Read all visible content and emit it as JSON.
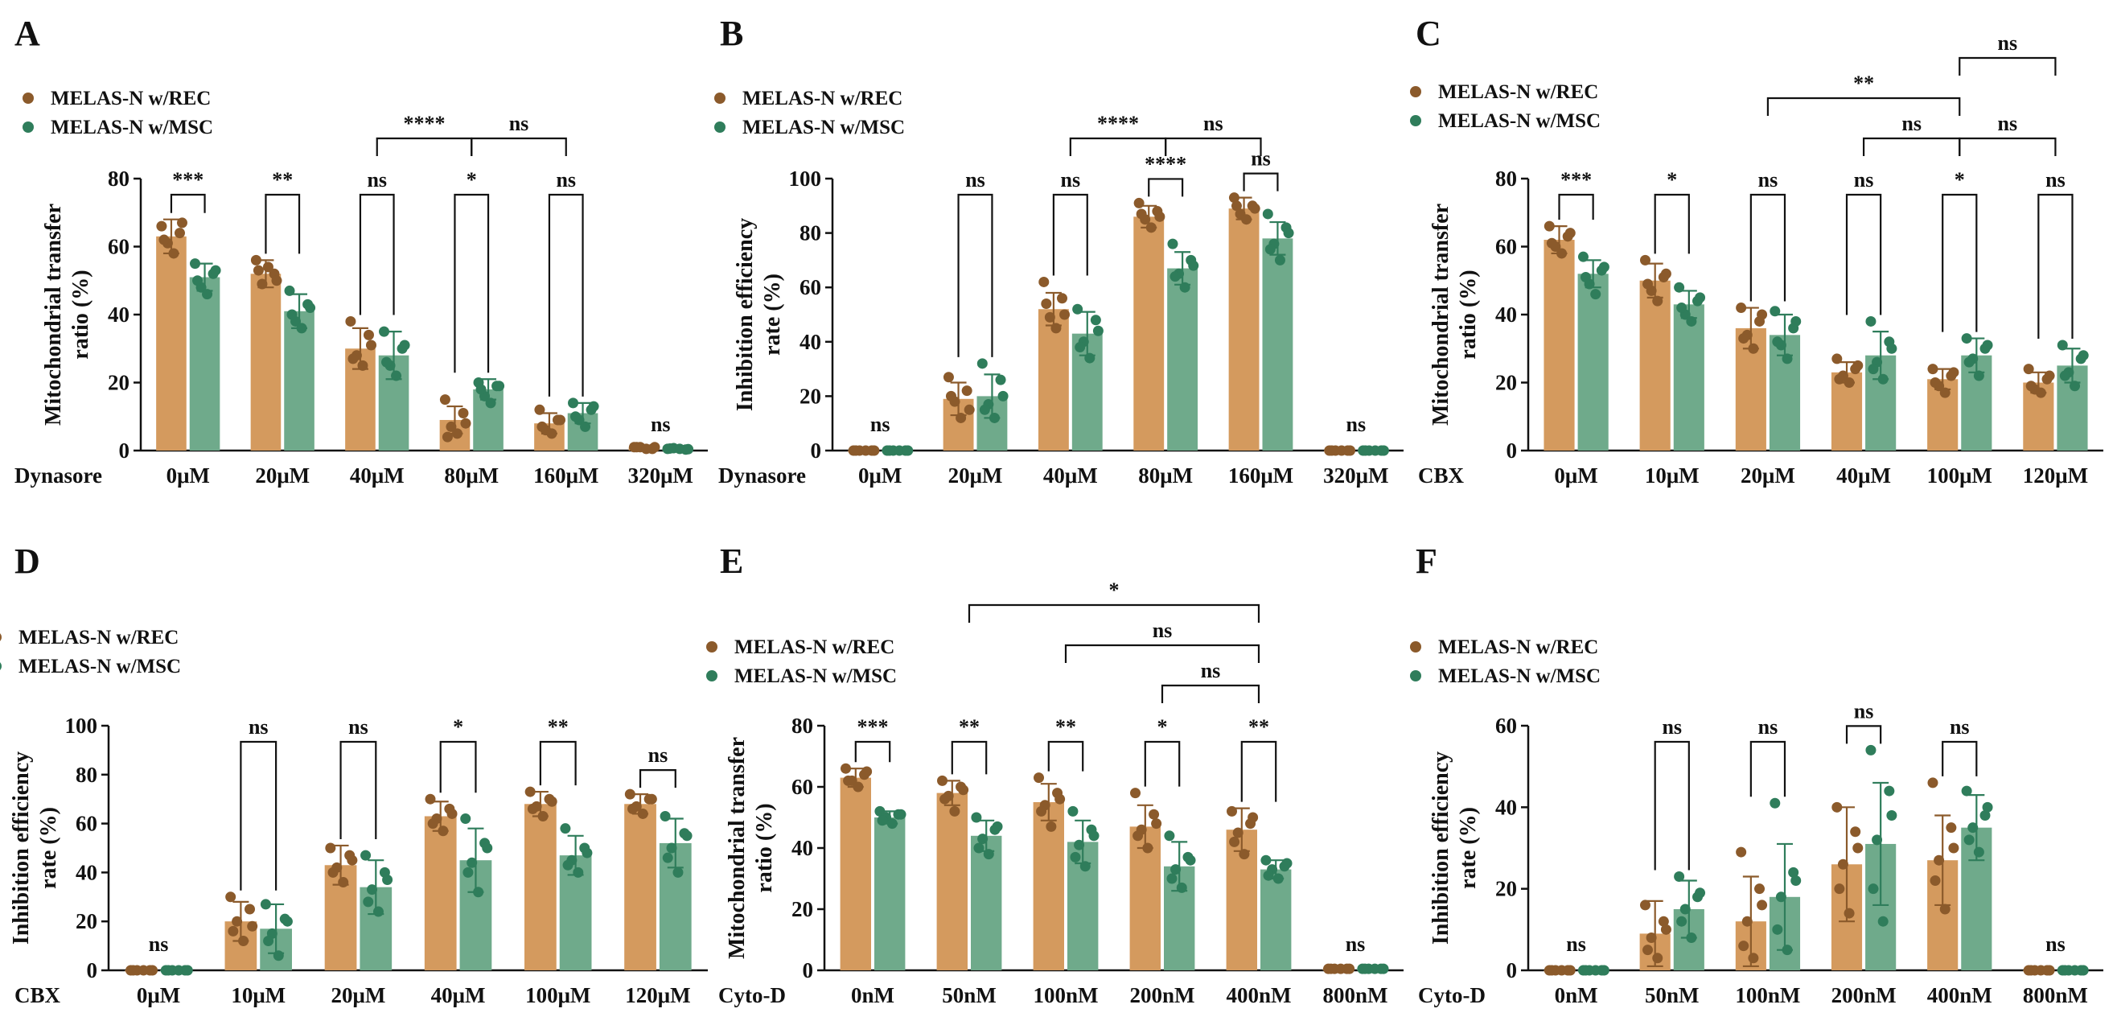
{
  "colors": {
    "rec": "#D49A5E",
    "msc": "#6FAA8B",
    "rec_dot": "#8B5A2B",
    "msc_dot": "#2F7D5B",
    "axis": "#111111"
  },
  "legend": {
    "rec": "MELAS-N w/REC",
    "msc": "MELAS-N w/MSC"
  },
  "chart_data": [
    {
      "panel": "A",
      "type": "bar",
      "ylabel": "Mitochondrial transfer ratio (%)",
      "ylabel_lines": [
        "Mitochondrial transfer",
        "ratio (%)"
      ],
      "ylim": [
        0,
        80
      ],
      "yticks": [
        0,
        20,
        40,
        60,
        80
      ],
      "xlabel": "Dynasore",
      "categories": [
        "0μM",
        "20μM",
        "40μM",
        "80μM",
        "160μM",
        "320μM"
      ],
      "series": [
        {
          "name": "MELAS-N w/REC",
          "values": [
            63,
            52,
            30,
            9,
            8,
            1
          ],
          "errors": [
            5,
            4,
            6,
            4,
            3,
            0.5
          ],
          "points": [
            [
              66,
              64,
              61,
              58,
              67,
              62
            ],
            [
              56,
              52,
              49,
              54,
              50,
              53
            ],
            [
              38,
              34,
              28,
              25,
              31,
              27
            ],
            [
              15,
              11,
              7,
              5,
              8,
              4
            ],
            [
              12,
              9,
              6,
              5,
              9,
              7
            ],
            [
              1,
              0.5,
              1,
              0.5,
              1,
              1
            ]
          ]
        },
        {
          "name": "MELAS-N w/MSC",
          "values": [
            51,
            41,
            28,
            18,
            11,
            0.5
          ],
          "errors": [
            4,
            5,
            7,
            3,
            3,
            0.3
          ],
          "points": [
            [
              55,
              52,
              48,
              46,
              53,
              50
            ],
            [
              47,
              43,
              38,
              36,
              42,
              40
            ],
            [
              35,
              30,
              25,
              22,
              31,
              26
            ],
            [
              20,
              19,
              16,
              14,
              19,
              18
            ],
            [
              14,
              12,
              9,
              7,
              13,
              10
            ],
            [
              0.5,
              0.3,
              0.7,
              0.5,
              0.4,
              0.6
            ]
          ]
        }
      ],
      "pair_sig": [
        "***",
        "**",
        "ns",
        "*",
        "ns",
        "ns"
      ],
      "brackets": [
        {
          "from": 2,
          "to": 3,
          "label": "****",
          "level": 0
        },
        {
          "from": 3,
          "to": 4,
          "label": "ns",
          "level": 0
        }
      ]
    },
    {
      "panel": "B",
      "type": "bar",
      "ylabel": "Inhibition efficiency rate (%)",
      "ylabel_lines": [
        "Inhibition efficiency",
        "rate (%)"
      ],
      "ylim": [
        0,
        100
      ],
      "yticks": [
        0,
        20,
        40,
        60,
        80,
        100
      ],
      "xlabel": "Dynasore",
      "categories": [
        "0μM",
        "20μM",
        "40μM",
        "80μM",
        "160μM",
        "320μM"
      ],
      "series": [
        {
          "name": "MELAS-N w/REC",
          "values": [
            0,
            19,
            52,
            86,
            89,
            0
          ],
          "errors": [
            0.3,
            6,
            6,
            4,
            4,
            0.3
          ],
          "points": [
            [
              0,
              0,
              0,
              0,
              0,
              0
            ],
            [
              27,
              22,
              18,
              12,
              15,
              20
            ],
            [
              62,
              56,
              49,
              45,
              50,
              54
            ],
            [
              91,
              88,
              85,
              82,
              86,
              87
            ],
            [
              93,
              90,
              87,
              85,
              89,
              90
            ],
            [
              0,
              0,
              0,
              0,
              0,
              0
            ]
          ]
        },
        {
          "name": "MELAS-N w/MSC",
          "values": [
            0,
            20,
            43,
            67,
            78,
            0
          ],
          "errors": [
            0.3,
            8,
            8,
            6,
            6,
            0.3
          ],
          "points": [
            [
              0,
              0,
              0,
              0,
              0,
              0
            ],
            [
              32,
              26,
              17,
              12,
              20,
              15
            ],
            [
              52,
              48,
              40,
              34,
              44,
              38
            ],
            [
              76,
              70,
              65,
              60,
              68,
              64
            ],
            [
              87,
              82,
              76,
              70,
              80,
              74
            ],
            [
              0,
              0,
              0,
              0,
              0,
              0
            ]
          ]
        }
      ],
      "pair_sig": [
        "ns",
        "ns",
        "ns",
        "****",
        "ns",
        "ns"
      ],
      "brackets": [
        {
          "from": 2,
          "to": 3,
          "label": "****",
          "level": 0
        },
        {
          "from": 3,
          "to": 4,
          "label": "ns",
          "level": 0
        }
      ]
    },
    {
      "panel": "C",
      "type": "bar",
      "ylabel": "Mitochondrial transfer ratio (%)",
      "ylabel_lines": [
        "Mitochondrial transfer",
        "ratio (%)"
      ],
      "ylim": [
        0,
        80
      ],
      "yticks": [
        0,
        20,
        40,
        60,
        80
      ],
      "xlabel": "CBX",
      "categories": [
        "0μM",
        "10μM",
        "20μM",
        "40μM",
        "100μM",
        "120μM"
      ],
      "series": [
        {
          "name": "MELAS-N w/REC",
          "values": [
            62,
            50,
            36,
            23,
            21,
            20
          ],
          "errors": [
            4,
            5,
            6,
            3,
            3,
            3
          ],
          "points": [
            [
              66,
              63,
              60,
              58,
              64,
              61
            ],
            [
              56,
              51,
              47,
              44,
              52,
              49
            ],
            [
              42,
              38,
              34,
              30,
              40,
              33
            ],
            [
              27,
              24,
              22,
              20,
              25,
              21
            ],
            [
              24,
              22,
              19,
              17,
              23,
              20
            ],
            [
              24,
              21,
              18,
              17,
              22,
              19
            ]
          ]
        },
        {
          "name": "MELAS-N w/MSC",
          "values": [
            52,
            43,
            34,
            28,
            28,
            25
          ],
          "errors": [
            4,
            4,
            6,
            7,
            5,
            5
          ],
          "points": [
            [
              57,
              53,
              49,
              46,
              54,
              51
            ],
            [
              48,
              44,
              40,
              38,
              45,
              42
            ],
            [
              41,
              36,
              31,
              27,
              38,
              32
            ],
            [
              38,
              32,
              26,
              21,
              30,
              24
            ],
            [
              33,
              30,
              27,
              22,
              31,
              26
            ],
            [
              31,
              27,
              23,
              19,
              28,
              22
            ]
          ]
        }
      ],
      "pair_sig": [
        "***",
        "*",
        "ns",
        "ns",
        "*",
        "ns"
      ],
      "brackets": [
        {
          "from": 2,
          "to": 4,
          "label": "**",
          "level": 1
        },
        {
          "from": 3,
          "to": 4,
          "label": "ns",
          "level": 0
        },
        {
          "from": 4,
          "to": 5,
          "label": "ns",
          "level": 0
        },
        {
          "from": 4,
          "to": 5,
          "label": "ns",
          "level": 2
        }
      ]
    },
    {
      "panel": "D",
      "type": "bar",
      "ylabel": "Inhibition efficiency rate (%)",
      "ylabel_lines": [
        "Inhibition efficiency",
        "rate (%)"
      ],
      "ylim": [
        0,
        100
      ],
      "yticks": [
        0,
        20,
        40,
        60,
        80,
        100
      ],
      "xlabel": "CBX",
      "categories": [
        "0μM",
        "10μM",
        "20μM",
        "40μM",
        "100μM",
        "120μM"
      ],
      "series": [
        {
          "name": "MELAS-N w/REC",
          "values": [
            0,
            20,
            43,
            63,
            68,
            68
          ],
          "errors": [
            0.3,
            8,
            8,
            6,
            5,
            4
          ],
          "points": [
            [
              0,
              0,
              0,
              0,
              0,
              0
            ],
            [
              30,
              25,
              20,
              12,
              18,
              16
            ],
            [
              50,
              47,
              42,
              36,
              45,
              40
            ],
            [
              70,
              66,
              62,
              57,
              64,
              60
            ],
            [
              73,
              70,
              67,
              63,
              69,
              66
            ],
            [
              72,
              70,
              67,
              64,
              70,
              66
            ]
          ]
        },
        {
          "name": "MELAS-N w/MSC",
          "values": [
            0,
            17,
            34,
            45,
            47,
            52
          ],
          "errors": [
            0.3,
            10,
            11,
            13,
            8,
            10
          ],
          "points": [
            [
              0,
              0,
              0,
              0,
              0,
              0
            ],
            [
              27,
              21,
              15,
              6,
              20,
              12
            ],
            [
              47,
              40,
              33,
              24,
              37,
              28
            ],
            [
              62,
              52,
              44,
              32,
              50,
              40
            ],
            [
              58,
              50,
              45,
              40,
              48,
              43
            ],
            [
              63,
              56,
              50,
              40,
              55,
              46
            ]
          ]
        }
      ],
      "pair_sig": [
        "ns",
        "ns",
        "ns",
        "*",
        "**",
        "ns"
      ],
      "brackets": []
    },
    {
      "panel": "E",
      "type": "bar",
      "ylabel": "Mitochondrial transfer ratio (%)",
      "ylabel_lines": [
        "Mitochondrial transfer",
        "ratio (%)"
      ],
      "ylim": [
        0,
        80
      ],
      "yticks": [
        0,
        20,
        40,
        60,
        80
      ],
      "xlabel": "Cyto-D",
      "categories": [
        "0nM",
        "50nM",
        "100nM",
        "200nM",
        "400nM",
        "800nM"
      ],
      "series": [
        {
          "name": "MELAS-N w/REC",
          "values": [
            63,
            58,
            55,
            47,
            46,
            0.5
          ],
          "errors": [
            3,
            4,
            6,
            7,
            7,
            0.3
          ],
          "points": [
            [
              66,
              64,
              62,
              60,
              65,
              62
            ],
            [
              62,
              60,
              57,
              52,
              59,
              56
            ],
            [
              63,
              58,
              54,
              47,
              56,
              52
            ],
            [
              58,
              51,
              46,
              40,
              48,
              44
            ],
            [
              52,
              48,
              45,
              38,
              50,
              42
            ],
            [
              0.5,
              0.5,
              0.5,
              0.5,
              0.5,
              0.5
            ]
          ]
        },
        {
          "name": "MELAS-N w/MSC",
          "values": [
            50,
            44,
            42,
            34,
            33,
            0.5
          ],
          "errors": [
            2,
            5,
            7,
            8,
            3,
            0.3
          ],
          "points": [
            [
              52,
              51,
              50,
              48,
              51,
              49
            ],
            [
              50,
              46,
              43,
              38,
              47,
              40
            ],
            [
              52,
              46,
              41,
              34,
              44,
              37
            ],
            [
              44,
              37,
              33,
              27,
              36,
              30
            ],
            [
              36,
              34,
              33,
              30,
              35,
              31
            ],
            [
              0.5,
              0.5,
              0.5,
              0.5,
              0.5,
              0.5
            ]
          ]
        }
      ],
      "pair_sig": [
        "***",
        "**",
        "**",
        "*",
        "**",
        "ns"
      ],
      "brackets": [
        {
          "from": 3,
          "to": 4,
          "label": "ns",
          "level": 0
        },
        {
          "from": 2,
          "to": 4,
          "label": "ns",
          "level": 1
        },
        {
          "from": 1,
          "to": 4,
          "label": "*",
          "level": 2
        }
      ]
    },
    {
      "panel": "F",
      "type": "bar",
      "ylabel": "Inhibition efficiency rate (%)",
      "ylabel_lines": [
        "Inhibition efficiency",
        "rate (%)"
      ],
      "ylim": [
        0,
        60
      ],
      "yticks": [
        0,
        20,
        40,
        60
      ],
      "xlabel": "Cyto-D",
      "categories": [
        "0nM",
        "50nM",
        "100nM",
        "200nM",
        "400nM",
        "800nM"
      ],
      "series": [
        {
          "name": "MELAS-N w/REC",
          "values": [
            0,
            9,
            12,
            26,
            27,
            0
          ],
          "errors": [
            0.3,
            8,
            11,
            14,
            11,
            0.3
          ],
          "points": [
            [
              0,
              0,
              0,
              0,
              0,
              0
            ],
            [
              16,
              12,
              8,
              3,
              10,
              5
            ],
            [
              29,
              20,
              12,
              3,
              16,
              6
            ],
            [
              40,
              34,
              26,
              14,
              30,
              20
            ],
            [
              46,
              35,
              27,
              15,
              30,
              22
            ],
            [
              0,
              0,
              0,
              0,
              0,
              0
            ]
          ]
        },
        {
          "name": "MELAS-N w/MSC",
          "values": [
            0,
            15,
            18,
            31,
            35,
            0
          ],
          "errors": [
            0.3,
            7,
            13,
            15,
            8,
            0.3
          ],
          "points": [
            [
              0,
              0,
              0,
              0,
              0,
              0
            ],
            [
              23,
              18,
              15,
              8,
              19,
              12
            ],
            [
              41,
              24,
              18,
              5,
              22,
              10
            ],
            [
              54,
              44,
              32,
              12,
              38,
              20
            ],
            [
              44,
              38,
              35,
              29,
              40,
              32
            ],
            [
              0,
              0,
              0,
              0,
              0,
              0
            ]
          ]
        }
      ],
      "pair_sig": [
        "ns",
        "ns",
        "ns",
        "ns",
        "ns",
        "ns"
      ],
      "brackets": []
    }
  ]
}
